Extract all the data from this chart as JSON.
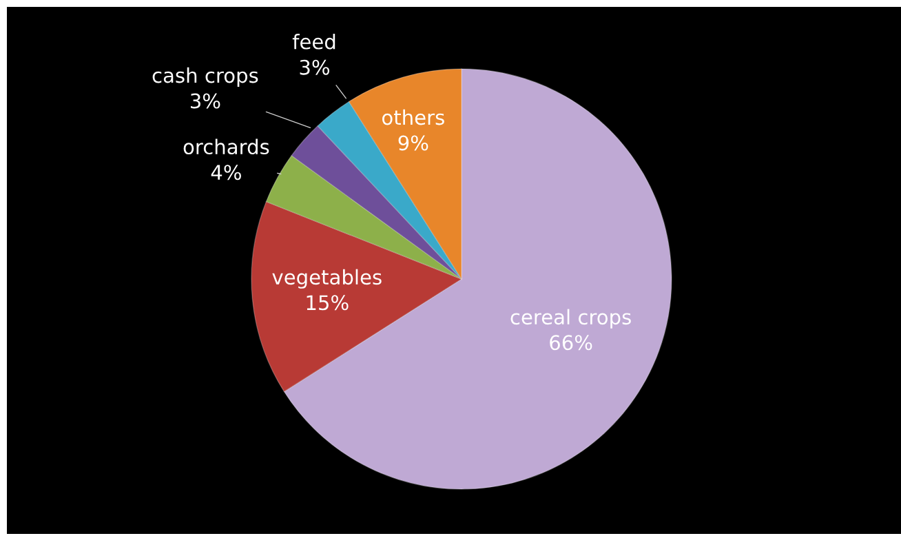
{
  "chart_data": {
    "type": "pie",
    "categories": [
      "cereal crops",
      "vegetables",
      "orchards",
      "cash crops",
      "feed",
      "others"
    ],
    "values": [
      66,
      15,
      4,
      3,
      3,
      9
    ],
    "value_labels": [
      "66%",
      "15%",
      "4%",
      "3%",
      "3%",
      "9%"
    ],
    "colors": [
      "#bfa9d4",
      "#b83a35",
      "#8db04a",
      "#6e4f9a",
      "#3aa9c9",
      "#e8862a"
    ]
  }
}
